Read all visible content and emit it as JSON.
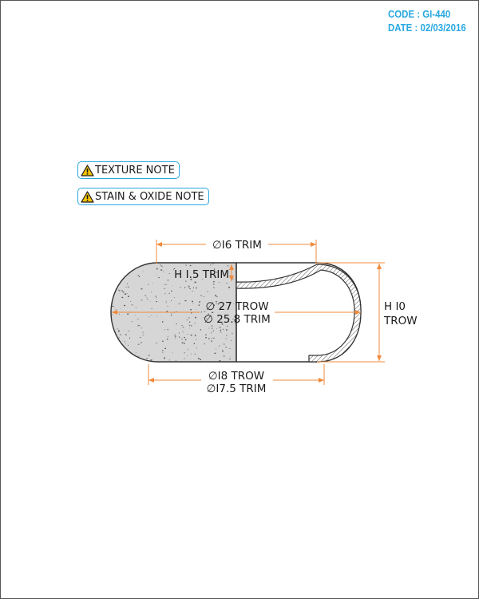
{
  "header": {
    "code_label": "CODE",
    "code_value": "GI-440",
    "date_label": "DATE",
    "date_value": "02/03/2016"
  },
  "notes": [
    {
      "label": "TEXTURE NOTE",
      "icon": "warning-triangle-icon"
    },
    {
      "label": "STAIN & OXIDE NOTE",
      "icon": "warning-triangle-icon"
    }
  ],
  "dimensions": {
    "top_width": "∅I6 TRIM",
    "edge_height": "H I.5 TRIM",
    "outer_trow": "∅ 27 TROW",
    "outer_trim": "∅ 25.8 TRIM",
    "height_line1": "H I0",
    "height_line2": "TROW",
    "bottom_trow": "∅I8 TROW",
    "bottom_trim": "∅I7.5 TRIM"
  },
  "colors": {
    "accent_blue": "#29a8e0",
    "dimension_orange": "#f08a3c",
    "warning_yellow": "#f5c400",
    "fill_gray": "#d6d6d6",
    "outline": "#333333"
  }
}
